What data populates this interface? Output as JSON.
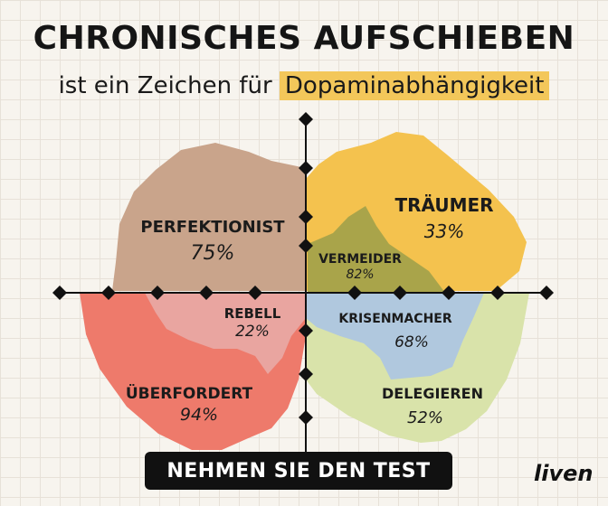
{
  "header": {
    "title": "CHRONISCHES AUFSCHIEBEN",
    "subtitle_prefix": "ist ein Zeichen für",
    "subtitle_highlight": "Dopaminabhängigkeit"
  },
  "colors": {
    "highlight": "#f3c75a",
    "perfektionist": "#c9a48b",
    "traeumer": "#f4c24e",
    "vermeider": "#a9a44a",
    "rebell": "#e9a5a0",
    "ueberfordert": "#ee7a6b",
    "krisenmacher": "#b0c8de",
    "delegieren": "#d9e3aa"
  },
  "regions": {
    "perfektionist": {
      "label": "PERFEKTIONIST",
      "value": "75%"
    },
    "traeumer": {
      "label": "TRÄUMER",
      "value": "33%"
    },
    "vermeider": {
      "label": "VERMEIDER",
      "value": "82%"
    },
    "rebell": {
      "label": "REBELL",
      "value": "22%"
    },
    "ueberfordert": {
      "label": "ÜBERFORDERT",
      "value": "94%"
    },
    "krisenmacher": {
      "label": "KRISENMACHER",
      "value": "68%"
    },
    "delegieren": {
      "label": "DELEGIEREN",
      "value": "52%"
    }
  },
  "cta": {
    "label": "NEHMEN SIE DEN TEST"
  },
  "brand": {
    "name": "liven"
  }
}
